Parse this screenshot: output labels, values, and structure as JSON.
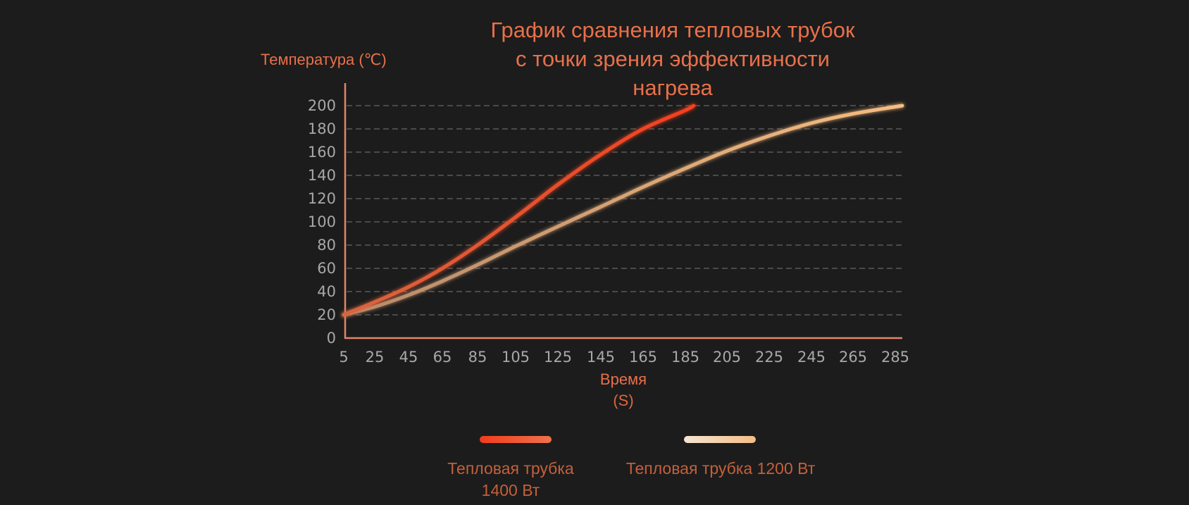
{
  "chart": {
    "title": "График сравнения тепловых трубок\nс точки зрения эффективности\nнагрева",
    "ylabel": "Температура (℃)",
    "xlabel": "Время",
    "xlabel_unit": "(S)",
    "legend": [
      {
        "label_line1": "Тепловая трубка",
        "label_line2": "1400 Вт",
        "color_start": "#f23d1c",
        "color_end": "#f0714a"
      },
      {
        "label": "Тепловая трубка 1200 Вт",
        "color_start": "#f6e4d2",
        "color_end": "#f3bd86"
      }
    ]
  },
  "colors": {
    "background": "#1c1c1c",
    "accent": "#e8704a",
    "axis": "#e58567",
    "grid": "#5a5a5a",
    "tick_text": "#a8a8a8",
    "series_1400": "#f4502a",
    "series_1200": "#f5c08c"
  },
  "chart_data": {
    "type": "line",
    "title": "График сравнения тепловых трубок с точки зрения эффективности нагрева",
    "xlabel": "Время (S)",
    "ylabel": "Температура (℃)",
    "x_ticks": [
      5,
      25,
      45,
      65,
      85,
      105,
      125,
      145,
      165,
      185,
      205,
      225,
      245,
      265,
      285
    ],
    "y_ticks": [
      0,
      20,
      40,
      60,
      80,
      100,
      120,
      140,
      160,
      180,
      200
    ],
    "xlim": [
      5,
      285
    ],
    "ylim": [
      0,
      200
    ],
    "grid": "horizontal dashed",
    "legend_position": "bottom",
    "series": [
      {
        "name": "Тепловая трубка 1400 Вт",
        "x": [
          5,
          25,
          45,
          65,
          85,
          105,
          125,
          145,
          165,
          185,
          189
        ],
        "values": [
          20,
          31,
          44,
          60,
          80,
          104,
          132,
          158,
          180,
          196,
          200
        ]
      },
      {
        "name": "Тепловая трубка 1200 Вт",
        "x": [
          5,
          25,
          45,
          65,
          85,
          105,
          125,
          145,
          165,
          185,
          205,
          225,
          245,
          265,
          285
        ],
        "values": [
          20,
          27,
          37,
          49,
          63,
          79,
          96,
          113,
          130,
          146,
          161,
          174,
          185,
          193,
          200
        ]
      }
    ]
  }
}
